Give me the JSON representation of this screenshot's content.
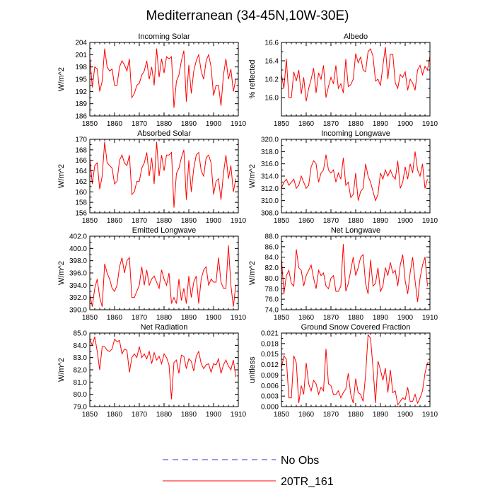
{
  "title": "Mediterranean (34-45N,10W-30E)",
  "legend": [
    {
      "label": "No Obs",
      "color": "#3333cc",
      "dashed": true
    },
    {
      "label": "20TR_161",
      "color": "#ff0000",
      "dashed": false
    }
  ],
  "series_color": "#ff0000",
  "chart_data": [
    {
      "type": "line",
      "title": "Incoming Solar",
      "ylabel": "W/m^2",
      "xlabel": "",
      "xlim": [
        1850,
        1910
      ],
      "xticks": [
        1850,
        1860,
        1870,
        1880,
        1890,
        1900,
        1910
      ],
      "xtick_labels": [
        "1850",
        "1860",
        "1870",
        "1880",
        "1890",
        "1900",
        "1910"
      ],
      "ylim": [
        186,
        204
      ],
      "yticks": [
        186,
        189,
        192,
        195,
        198,
        201,
        204
      ],
      "ytick_labels": [
        "186",
        "189",
        "192",
        "195",
        "198",
        "201",
        "204"
      ],
      "x_start": 1850,
      "values": [
        200.5,
        193.0,
        198.0,
        197.5,
        192.0,
        194.5,
        202.5,
        198.0,
        197.0,
        197.5,
        193.5,
        193.5,
        198.0,
        199.5,
        198.5,
        197.0,
        200.0,
        190.5,
        191.5,
        193.5,
        194.0,
        196.0,
        197.0,
        199.5,
        195.0,
        198.0,
        193.5,
        202.5,
        195.5,
        200.0,
        196.5,
        200.5,
        200.0,
        200.5,
        188.0,
        194.5,
        196.0,
        199.5,
        202.0,
        189.5,
        198.5,
        191.5,
        197.0,
        199.5,
        201.0,
        197.0,
        195.0,
        199.5,
        201.0,
        198.0,
        191.0,
        193.5,
        193.5,
        188.5,
        196.0,
        200.0,
        195.0,
        197.5,
        192.0,
        195.0
      ]
    },
    {
      "type": "line",
      "title": "Albedo",
      "ylabel": "% reflected",
      "xlabel": "",
      "xlim": [
        1850,
        1910
      ],
      "xticks": [
        1850,
        1860,
        1870,
        1880,
        1890,
        1900,
        1910
      ],
      "xtick_labels": [
        "1850",
        "1860",
        "1870",
        "1880",
        "1890",
        "1900",
        "1910"
      ],
      "ylim": [
        15.8,
        16.6
      ],
      "yticks": [
        16.0,
        16.2,
        16.4,
        16.6
      ],
      "ytick_labels": [
        "16.0",
        "16.2",
        "16.4",
        "16.6"
      ],
      "x_start": 1850,
      "values": [
        16.25,
        16.1,
        16.42,
        16.0,
        16.0,
        16.28,
        16.18,
        16.3,
        16.04,
        16.22,
        15.96,
        16.1,
        16.2,
        16.32,
        16.05,
        16.27,
        16.2,
        16.35,
        16.0,
        16.12,
        16.22,
        16.15,
        16.35,
        16.1,
        16.15,
        16.05,
        16.42,
        16.12,
        16.14,
        16.2,
        16.48,
        16.38,
        16.44,
        16.3,
        16.28,
        16.5,
        16.53,
        16.45,
        16.18,
        16.2,
        16.13,
        16.35,
        16.55,
        16.2,
        16.47,
        16.47,
        16.16,
        16.1,
        16.25,
        16.22,
        16.28,
        16.08,
        16.2,
        16.16,
        16.08,
        16.3,
        16.35,
        16.25,
        16.34,
        16.3,
        16.45
      ]
    },
    {
      "type": "line",
      "title": "Absorbed Solar",
      "ylabel": "W/m^2",
      "xlabel": "",
      "xlim": [
        1850,
        1910
      ],
      "xticks": [
        1850,
        1860,
        1870,
        1880,
        1890,
        1900,
        1910
      ],
      "xtick_labels": [
        "1850",
        "1860",
        "1870",
        "1880",
        "1890",
        "1900",
        "1910"
      ],
      "ylim": [
        156,
        170
      ],
      "yticks": [
        156,
        158,
        160,
        162,
        164,
        166,
        168,
        170
      ],
      "ytick_labels": [
        "156",
        "158",
        "160",
        "162",
        "164",
        "166",
        "168",
        "170"
      ],
      "x_start": 1850,
      "values": [
        166.5,
        161.5,
        165.0,
        165.5,
        160.5,
        163.0,
        169.5,
        165.5,
        165.0,
        164.5,
        161.5,
        162.0,
        166.0,
        167.0,
        165.5,
        165.0,
        167.0,
        159.5,
        160.0,
        162.0,
        162.0,
        164.5,
        165.5,
        167.5,
        163.0,
        166.5,
        161.5,
        169.5,
        163.0,
        167.0,
        164.0,
        167.0,
        167.0,
        167.5,
        157.0,
        163.5,
        164.5,
        166.5,
        168.0,
        158.5,
        166.0,
        160.0,
        164.5,
        167.0,
        167.5,
        164.0,
        163.0,
        166.5,
        167.0,
        165.5,
        159.5,
        162.0,
        162.5,
        158.5,
        163.5,
        167.0,
        162.5,
        165.0,
        160.0,
        162.5
      ]
    },
    {
      "type": "line",
      "title": "Incoming Longwave",
      "ylabel": "W/m^2",
      "xlabel": "",
      "xlim": [
        1850,
        1910
      ],
      "xticks": [
        1850,
        1860,
        1870,
        1880,
        1890,
        1900,
        1910
      ],
      "xtick_labels": [
        "1850",
        "1860",
        "1870",
        "1880",
        "1890",
        "1900",
        "1910"
      ],
      "ylim": [
        308,
        320
      ],
      "yticks": [
        308,
        310,
        312,
        314,
        316,
        318,
        320
      ],
      "ytick_labels": [
        "308.0",
        "310.0",
        "312.0",
        "314.0",
        "316.0",
        "318.0",
        "320.0"
      ],
      "x_start": 1850,
      "values": [
        312.0,
        313.0,
        313.5,
        312.5,
        313.0,
        313.5,
        312.0,
        312.5,
        314.0,
        313.0,
        312.0,
        312.5,
        315.5,
        316.5,
        316.0,
        313.0,
        314.5,
        315.0,
        317.5,
        315.0,
        314.5,
        315.0,
        313.0,
        314.5,
        313.5,
        317.0,
        312.5,
        313.0,
        310.5,
        311.0,
        314.5,
        310.0,
        311.5,
        312.0,
        316.0,
        314.0,
        313.0,
        311.5,
        310.0,
        311.0,
        314.5,
        313.5,
        315.0,
        314.0,
        315.0,
        314.0,
        313.5,
        316.5,
        312.0,
        313.0,
        315.5,
        313.5,
        316.0,
        314.5,
        318.0,
        315.0,
        314.0,
        316.0,
        312.0,
        313.5
      ]
    },
    {
      "type": "line",
      "title": "Emitted Longwave",
      "ylabel": "W/m^2",
      "xlabel": "",
      "xlim": [
        1850,
        1910
      ],
      "xticks": [
        1850,
        1860,
        1870,
        1880,
        1890,
        1900,
        1910
      ],
      "xtick_labels": [
        "1850",
        "1860",
        "1870",
        "1880",
        "1890",
        "1900",
        "1910"
      ],
      "ylim": [
        390,
        402
      ],
      "yticks": [
        390,
        392,
        394,
        396,
        398,
        400,
        402
      ],
      "ytick_labels": [
        "390.0",
        "392.0",
        "394.0",
        "396.0",
        "398.0",
        "400.0",
        "402.0"
      ],
      "x_start": 1850,
      "values": [
        392.5,
        390.5,
        393.5,
        395.0,
        392.0,
        390.5,
        397.5,
        396.0,
        395.0,
        393.5,
        393.0,
        394.0,
        397.0,
        398.5,
        396.0,
        398.0,
        398.5,
        392.0,
        392.0,
        393.0,
        394.0,
        397.0,
        394.0,
        396.5,
        394.0,
        395.0,
        395.5,
        394.5,
        393.5,
        396.5,
        395.0,
        394.0,
        396.0,
        391.0,
        392.0,
        391.0,
        395.0,
        391.5,
        393.5,
        391.0,
        395.5,
        392.0,
        394.5,
        395.5,
        391.0,
        395.0,
        396.5,
        397.0,
        394.0,
        395.0,
        394.5,
        394.5,
        398.5,
        394.5,
        393.5,
        393.5,
        400.5,
        394.0,
        390.5,
        394.0
      ]
    },
    {
      "type": "line",
      "title": "Net Longwave",
      "ylabel": "W/m^2",
      "xlabel": "",
      "xlim": [
        1850,
        1910
      ],
      "xticks": [
        1850,
        1860,
        1870,
        1880,
        1890,
        1900,
        1910
      ],
      "xtick_labels": [
        "1850",
        "1860",
        "1870",
        "1880",
        "1890",
        "1900",
        "1910"
      ],
      "ylim": [
        74,
        88
      ],
      "yticks": [
        74,
        76,
        78,
        80,
        82,
        84,
        86,
        88
      ],
      "ytick_labels": [
        "74.0",
        "76.0",
        "78.0",
        "80.0",
        "82.0",
        "84.0",
        "86.0",
        "88.0"
      ],
      "x_start": 1850,
      "values": [
        84.0,
        77.0,
        80.5,
        81.5,
        79.0,
        78.5,
        85.5,
        82.0,
        81.5,
        78.5,
        80.5,
        81.5,
        82.5,
        80.0,
        78.0,
        81.5,
        80.5,
        81.0,
        78.5,
        78.0,
        80.0,
        80.5,
        77.5,
        77.5,
        78.5,
        86.5,
        77.5,
        79.0,
        81.5,
        84.0,
        80.5,
        82.0,
        84.0,
        84.5,
        79.0,
        77.0,
        83.5,
        78.5,
        79.0,
        82.0,
        77.5,
        78.5,
        82.0,
        80.5,
        83.0,
        81.0,
        81.5,
        78.5,
        82.5,
        84.5,
        79.5,
        77.0,
        81.0,
        84.0,
        79.5,
        75.5,
        80.0,
        82.5,
        84.0,
        78.5
      ]
    },
    {
      "type": "line",
      "title": "Net Radiation",
      "ylabel": "W/m^2",
      "xlabel": "",
      "xlim": [
        1850,
        1910
      ],
      "xticks": [
        1850,
        1860,
        1870,
        1880,
        1890,
        1900,
        1910
      ],
      "xtick_labels": [
        "1850",
        "1860",
        "1870",
        "1880",
        "1890",
        "1900",
        "1910"
      ],
      "ylim": [
        79,
        85
      ],
      "yticks": [
        79,
        80,
        81,
        82,
        83,
        84,
        85
      ],
      "ytick_labels": [
        "79.0",
        "80.0",
        "81.0",
        "82.0",
        "83.0",
        "84.0",
        "85.0"
      ],
      "x_start": 1850,
      "values": [
        84.5,
        84.0,
        84.7,
        83.5,
        82.0,
        83.9,
        83.9,
        83.6,
        83.5,
        83.7,
        84.5,
        84.3,
        84.4,
        83.3,
        83.7,
        83.6,
        81.8,
        83.0,
        83.3,
        83.0,
        83.9,
        83.0,
        83.3,
        82.9,
        83.5,
        82.5,
        83.4,
        82.8,
        83.1,
        82.5,
        83.3,
        83.0,
        82.4,
        79.6,
        82.6,
        82.8,
        81.7,
        83.2,
        83.1,
        82.1,
        82.9,
        82.7,
        81.9,
        83.1,
        83.5,
        82.5,
        82.1,
        82.4,
        82.5,
        81.8,
        82.5,
        82.4,
        82.9,
        81.7,
        82.4,
        82.8,
        82.3,
        82.0,
        82.8,
        81.4
      ]
    },
    {
      "type": "line",
      "title": "Ground Snow Covered Fraction",
      "ylabel": "unitless",
      "xlabel": "",
      "xlim": [
        1850,
        1910
      ],
      "xticks": [
        1850,
        1860,
        1870,
        1880,
        1890,
        1900,
        1910
      ],
      "xtick_labels": [
        "1850",
        "1860",
        "1870",
        "1880",
        "1890",
        "1900",
        "1910"
      ],
      "ylim": [
        0,
        0.021
      ],
      "yticks": [
        0,
        0.003,
        0.006,
        0.009,
        0.012,
        0.015,
        0.018,
        0.021
      ],
      "ytick_labels": [
        "0.000",
        "0.003",
        "0.006",
        "0.009",
        "0.012",
        "0.015",
        "0.018",
        "0.021"
      ],
      "x_start": 1850,
      "values": [
        0.011,
        0.0145,
        0.0135,
        0.0025,
        0.0025,
        0.0145,
        0.0125,
        0.001,
        0.006,
        0.0035,
        0.0125,
        0.0065,
        0.0045,
        0.0075,
        0.0065,
        0.0035,
        0.0055,
        0.0045,
        0.0165,
        0.0065,
        0.006,
        0.0035,
        0.0035,
        0.0045,
        0.0025,
        0.004,
        0.005,
        0.0095,
        0.0035,
        0.001,
        0.008,
        0.004,
        0.0035,
        0.0015,
        0.009,
        0.0205,
        0.0195,
        0.011,
        0.001,
        0.013,
        0.0105,
        0.0075,
        0.011,
        0.004,
        0.0105,
        0.004,
        0.0045,
        0.0005,
        0.0015,
        0.0025,
        0.002,
        0.0055,
        0.0015,
        0.0015,
        0.0035,
        0.001,
        0.0025,
        0.0045,
        0.0095,
        0.0125,
        0.0125
      ]
    }
  ]
}
